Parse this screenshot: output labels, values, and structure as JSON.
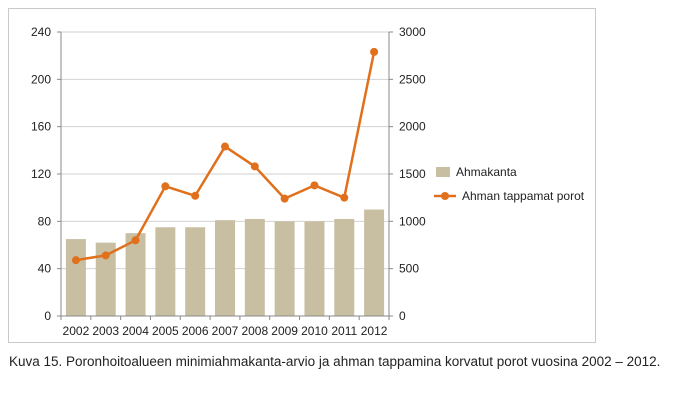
{
  "chart_data": {
    "type": "bar",
    "categories": [
      "2002",
      "2003",
      "2004",
      "2005",
      "2006",
      "2007",
      "2008",
      "2009",
      "2010",
      "2011",
      "2012"
    ],
    "series": [
      {
        "name": "Ahmakanta",
        "type": "bar",
        "axis": "left",
        "values": [
          65,
          62,
          70,
          75,
          75,
          81,
          82,
          80,
          80,
          82,
          90
        ],
        "color": "#c8bfa3"
      },
      {
        "name": "Ahman tappamat porot",
        "type": "line",
        "axis": "right",
        "values": [
          590,
          640,
          800,
          1370,
          1270,
          1790,
          1580,
          1240,
          1380,
          1250,
          2790
        ],
        "color": "#e0701c"
      }
    ],
    "y_left": {
      "min": 0,
      "max": 240,
      "ticks": [
        "0",
        "40",
        "80",
        "120",
        "160",
        "200",
        "240"
      ]
    },
    "y_right": {
      "min": 0,
      "max": 3000,
      "ticks": [
        "0",
        "500",
        "1000",
        "1500",
        "2000",
        "2500",
        "3000"
      ]
    },
    "grid": true,
    "legend_position": "right"
  },
  "caption": "Kuva 15. Poronhoitoalueen minimiahmakanta-arvio ja ahman tappamina korvatut porot vuosina 2002 – 2012."
}
